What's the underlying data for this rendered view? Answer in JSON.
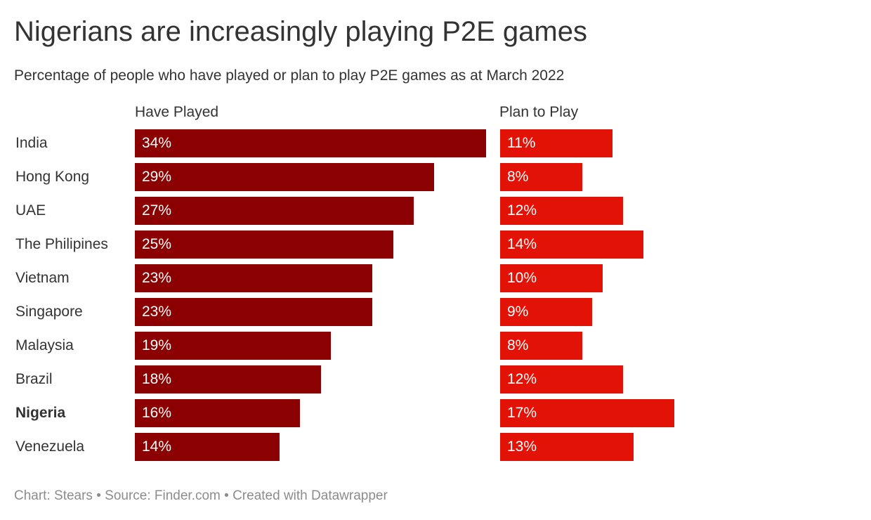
{
  "title": "Nigerians are increasingly playing P2E games",
  "subtitle": "Percentage of people who have played or plan to play P2E games as at March 2022",
  "footer": "Chart: Stears • Source: Finder.com • Created with Datawrapper",
  "colors": {
    "have_played": "#8b0000",
    "plan_to_play": "#e31206",
    "text": "#333333",
    "footer": "#8c8c8c"
  },
  "chart_data": {
    "type": "bar",
    "orientation": "horizontal",
    "title": "Nigerians are increasingly playing P2E games",
    "subtitle": "Percentage of people who have played or plan to play P2E games as at March 2022",
    "unit": "%",
    "categories": [
      "India",
      "Hong Kong",
      "UAE",
      "The Philipines",
      "Vietnam",
      "Singapore",
      "Malaysia",
      "Brazil",
      "Nigeria",
      "Venezuela"
    ],
    "highlighted_category": "Nigeria",
    "series": [
      {
        "name": "Have Played",
        "values": [
          34,
          29,
          27,
          25,
          23,
          23,
          19,
          18,
          16,
          14
        ],
        "labels": [
          "34%",
          "29%",
          "27%",
          "25%",
          "23%",
          "23%",
          "19%",
          "18%",
          "16%",
          "14%"
        ],
        "color": "#8b0000"
      },
      {
        "name": "Plan to Play",
        "values": [
          11,
          8,
          12,
          14,
          10,
          9,
          8,
          12,
          17,
          13
        ],
        "labels": [
          "11%",
          "8%",
          "12%",
          "14%",
          "10%",
          "9%",
          "8%",
          "12%",
          "17%",
          "13%"
        ],
        "color": "#e31206"
      }
    ],
    "grid": false,
    "legend": "none"
  }
}
